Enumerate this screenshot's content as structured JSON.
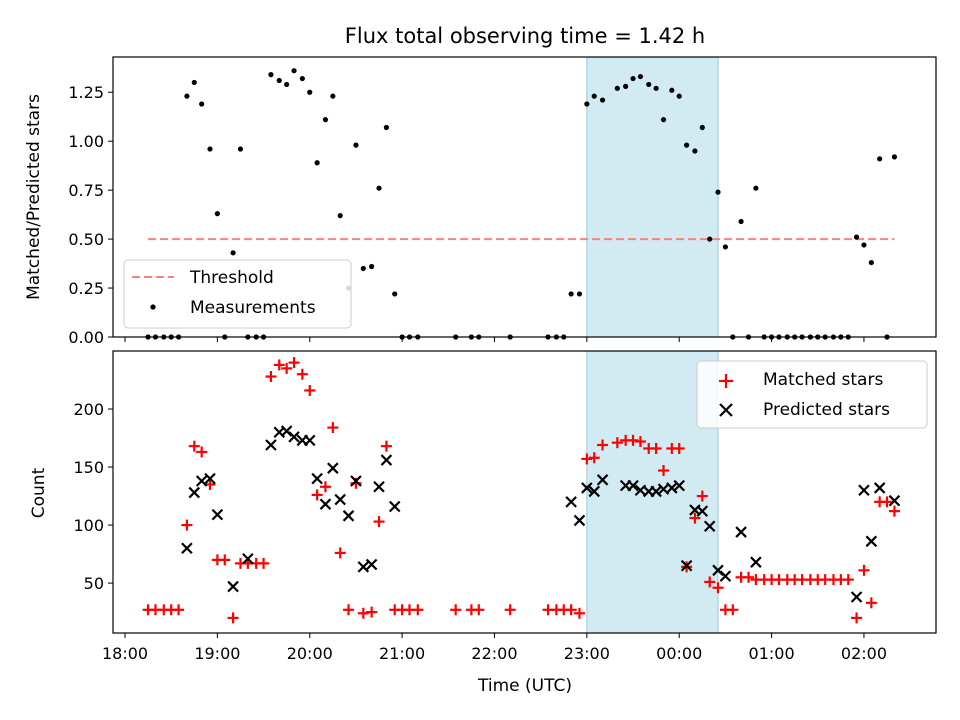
{
  "title": "Flux total observing time = 1.42 h",
  "colors": {
    "threshold": "#ff7f7f",
    "shade": "#add8e6",
    "matched": "#ff0000",
    "predicted": "#000000",
    "measurements": "#000000"
  },
  "chart_data": [
    {
      "type": "scatter",
      "ylabel": "Matched/Predicted stars",
      "xlim": [
        17.87,
        26.78
      ],
      "ylim": [
        0,
        1.43
      ],
      "yticks": [
        "0.00",
        "0.25",
        "0.50",
        "0.75",
        "1.00",
        "1.25"
      ],
      "grid": false,
      "legend_position": "lower-left",
      "shaded_x": [
        23.0,
        24.42
      ],
      "threshold": {
        "name": "Threshold",
        "value": 0.5,
        "x": [
          18.25,
          26.33
        ]
      },
      "series": [
        {
          "name": "Measurements",
          "points": [
            [
              18.25,
              0
            ],
            [
              18.33,
              0
            ],
            [
              18.42,
              0
            ],
            [
              18.5,
              0
            ],
            [
              18.58,
              0
            ],
            [
              18.67,
              1.23
            ],
            [
              18.75,
              1.3
            ],
            [
              18.83,
              1.19
            ],
            [
              18.92,
              0.96
            ],
            [
              19.0,
              0.63
            ],
            [
              19.08,
              0
            ],
            [
              19.17,
              0.43
            ],
            [
              19.25,
              0.96
            ],
            [
              19.33,
              0
            ],
            [
              19.42,
              0
            ],
            [
              19.5,
              0
            ],
            [
              19.58,
              1.34
            ],
            [
              19.67,
              1.31
            ],
            [
              19.75,
              1.29
            ],
            [
              19.83,
              1.36
            ],
            [
              19.92,
              1.32
            ],
            [
              20.0,
              1.25
            ],
            [
              20.08,
              0.89
            ],
            [
              20.17,
              1.11
            ],
            [
              20.25,
              1.23
            ],
            [
              20.33,
              0.62
            ],
            [
              20.42,
              0.25
            ],
            [
              20.5,
              0.98
            ],
            [
              20.58,
              0.35
            ],
            [
              20.67,
              0.36
            ],
            [
              20.75,
              0.76
            ],
            [
              20.83,
              1.07
            ],
            [
              20.92,
              0.22
            ],
            [
              21.0,
              0
            ],
            [
              21.08,
              0
            ],
            [
              21.17,
              0
            ],
            [
              21.58,
              0
            ],
            [
              21.75,
              0
            ],
            [
              21.83,
              0
            ],
            [
              22.17,
              0
            ],
            [
              22.58,
              0
            ],
            [
              22.67,
              0
            ],
            [
              22.75,
              0
            ],
            [
              22.83,
              0.22
            ],
            [
              22.92,
              0.22
            ],
            [
              23.0,
              1.19
            ],
            [
              23.08,
              1.23
            ],
            [
              23.17,
              1.21
            ],
            [
              23.33,
              1.27
            ],
            [
              23.42,
              1.28
            ],
            [
              23.5,
              1.32
            ],
            [
              23.58,
              1.33
            ],
            [
              23.67,
              1.29
            ],
            [
              23.75,
              1.27
            ],
            [
              23.83,
              1.11
            ],
            [
              23.92,
              1.26
            ],
            [
              24.0,
              1.23
            ],
            [
              24.08,
              0.98
            ],
            [
              24.17,
              0.95
            ],
            [
              24.25,
              1.07
            ],
            [
              24.33,
              0.5
            ],
            [
              24.42,
              0.74
            ],
            [
              24.5,
              0.46
            ],
            [
              24.58,
              0
            ],
            [
              24.67,
              0.59
            ],
            [
              24.75,
              0
            ],
            [
              24.83,
              0.76
            ],
            [
              24.92,
              0
            ],
            [
              25.0,
              0
            ],
            [
              25.08,
              0
            ],
            [
              25.17,
              0
            ],
            [
              25.25,
              0
            ],
            [
              25.33,
              0
            ],
            [
              25.42,
              0
            ],
            [
              25.5,
              0
            ],
            [
              25.58,
              0
            ],
            [
              25.67,
              0
            ],
            [
              25.75,
              0
            ],
            [
              25.83,
              0
            ],
            [
              25.92,
              0.51
            ],
            [
              26.0,
              0.47
            ],
            [
              26.08,
              0.38
            ],
            [
              26.17,
              0.91
            ],
            [
              26.25,
              0
            ],
            [
              26.33,
              0.92
            ]
          ]
        }
      ]
    },
    {
      "type": "scatter",
      "xlabel": "Time (UTC)",
      "ylabel": "Count",
      "xlim": [
        17.87,
        26.78
      ],
      "ylim": [
        7,
        250
      ],
      "xticks": [
        "18:00",
        "19:00",
        "20:00",
        "21:00",
        "22:00",
        "23:00",
        "00:00",
        "01:00",
        "02:00"
      ],
      "yticks": [
        "50",
        "100",
        "150",
        "200"
      ],
      "grid": false,
      "legend_position": "upper-right",
      "shaded_x": [
        23.0,
        24.42
      ],
      "series": [
        {
          "name": "Matched stars",
          "points": [
            [
              18.25,
              27
            ],
            [
              18.33,
              27
            ],
            [
              18.42,
              27
            ],
            [
              18.5,
              27
            ],
            [
              18.58,
              27
            ],
            [
              18.67,
              100
            ],
            [
              18.75,
              168
            ],
            [
              18.83,
              163
            ],
            [
              18.92,
              135
            ],
            [
              19.0,
              70
            ],
            [
              19.08,
              70
            ],
            [
              19.17,
              20
            ],
            [
              19.25,
              67
            ],
            [
              19.33,
              67
            ],
            [
              19.42,
              67
            ],
            [
              19.5,
              67
            ],
            [
              19.58,
              228
            ],
            [
              19.67,
              238
            ],
            [
              19.75,
              235
            ],
            [
              19.83,
              240
            ],
            [
              19.92,
              230
            ],
            [
              20.0,
              216
            ],
            [
              20.08,
              126
            ],
            [
              20.17,
              133
            ],
            [
              20.25,
              184
            ],
            [
              20.33,
              76
            ],
            [
              20.42,
              27
            ],
            [
              20.5,
              136
            ],
            [
              20.58,
              24
            ],
            [
              20.67,
              25
            ],
            [
              20.75,
              103
            ],
            [
              20.83,
              168
            ],
            [
              20.92,
              27
            ],
            [
              21.0,
              27
            ],
            [
              21.08,
              27
            ],
            [
              21.17,
              27
            ],
            [
              21.58,
              27
            ],
            [
              21.75,
              27
            ],
            [
              21.83,
              27
            ],
            [
              22.17,
              27
            ],
            [
              22.58,
              27
            ],
            [
              22.67,
              27
            ],
            [
              22.75,
              27
            ],
            [
              22.83,
              27
            ],
            [
              22.92,
              24
            ],
            [
              23.0,
              157
            ],
            [
              23.08,
              158
            ],
            [
              23.17,
              169
            ],
            [
              23.33,
              171
            ],
            [
              23.42,
              173
            ],
            [
              23.5,
              173
            ],
            [
              23.58,
              172
            ],
            [
              23.67,
              166
            ],
            [
              23.75,
              166
            ],
            [
              23.83,
              147
            ],
            [
              23.92,
              166
            ],
            [
              24.0,
              166
            ],
            [
              24.08,
              64
            ],
            [
              24.17,
              106
            ],
            [
              24.25,
              125
            ],
            [
              24.33,
              51
            ],
            [
              24.42,
              46
            ],
            [
              24.5,
              27
            ],
            [
              24.58,
              27
            ],
            [
              24.67,
              55
            ],
            [
              24.75,
              55
            ],
            [
              24.83,
              53
            ],
            [
              24.92,
              53
            ],
            [
              25.0,
              53
            ],
            [
              25.08,
              53
            ],
            [
              25.17,
              53
            ],
            [
              25.25,
              53
            ],
            [
              25.33,
              53
            ],
            [
              25.42,
              53
            ],
            [
              25.5,
              53
            ],
            [
              25.58,
              53
            ],
            [
              25.67,
              53
            ],
            [
              25.75,
              53
            ],
            [
              25.83,
              53
            ],
            [
              25.92,
              20
            ],
            [
              26.0,
              61
            ],
            [
              26.08,
              33
            ],
            [
              26.17,
              120
            ],
            [
              26.25,
              120
            ],
            [
              26.33,
              112
            ]
          ]
        },
        {
          "name": "Predicted stars",
          "points": [
            [
              18.67,
              80
            ],
            [
              18.75,
              128
            ],
            [
              18.83,
              138
            ],
            [
              18.92,
              140
            ],
            [
              19.0,
              109
            ],
            [
              19.17,
              47
            ],
            [
              19.33,
              71
            ],
            [
              19.58,
              169
            ],
            [
              19.67,
              180
            ],
            [
              19.75,
              181
            ],
            [
              19.83,
              176
            ],
            [
              19.92,
              173
            ],
            [
              20.0,
              173
            ],
            [
              20.08,
              140
            ],
            [
              20.17,
              118
            ],
            [
              20.25,
              149
            ],
            [
              20.33,
              122
            ],
            [
              20.42,
              108
            ],
            [
              20.5,
              138
            ],
            [
              20.58,
              64
            ],
            [
              20.67,
              66
            ],
            [
              20.75,
              133
            ],
            [
              20.83,
              156
            ],
            [
              20.92,
              116
            ],
            [
              22.83,
              120
            ],
            [
              22.92,
              104
            ],
            [
              23.0,
              132
            ],
            [
              23.08,
              129
            ],
            [
              23.17,
              139
            ],
            [
              23.42,
              134
            ],
            [
              23.5,
              134
            ],
            [
              23.58,
              130
            ],
            [
              23.67,
              129
            ],
            [
              23.75,
              129
            ],
            [
              23.83,
              131
            ],
            [
              23.92,
              132
            ],
            [
              24.0,
              134
            ],
            [
              24.08,
              65
            ],
            [
              24.17,
              113
            ],
            [
              24.25,
              112
            ],
            [
              24.33,
              99
            ],
            [
              24.42,
              61
            ],
            [
              24.5,
              56
            ],
            [
              24.67,
              94
            ],
            [
              24.83,
              68
            ],
            [
              25.92,
              38
            ],
            [
              26.0,
              130
            ],
            [
              26.08,
              86
            ],
            [
              26.17,
              132
            ],
            [
              26.33,
              121
            ]
          ]
        }
      ]
    }
  ]
}
